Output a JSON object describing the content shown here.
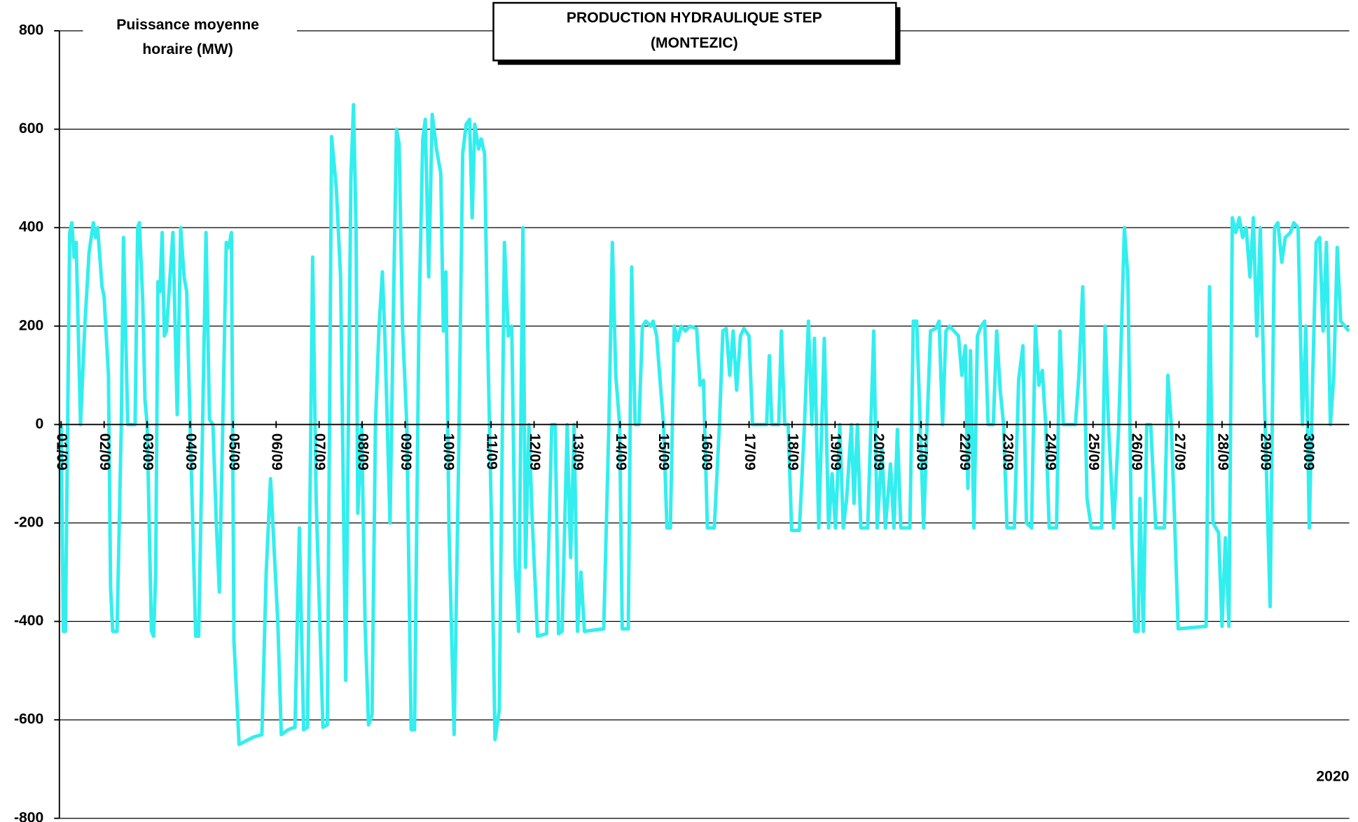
{
  "chart_data": {
    "type": "line",
    "title": [
      "PRODUCTION HYDRAULIQUE STEP",
      "(MONTEZIC)"
    ],
    "y_label": [
      "Puissance moyenne",
      "horaire (MW)"
    ],
    "annotation": "2020",
    "color": "#33eeee",
    "grid": true,
    "xlim": [
      1,
      31
    ],
    "ylim": [
      -800,
      800
    ],
    "yticks": [
      -800,
      -600,
      -400,
      -200,
      0,
      200,
      400,
      600,
      800
    ],
    "xticks": [
      {
        "value": 1,
        "label": "01/09"
      },
      {
        "value": 2,
        "label": "02/09"
      },
      {
        "value": 3,
        "label": "03/09"
      },
      {
        "value": 4,
        "label": "04/09"
      },
      {
        "value": 5,
        "label": "05/09"
      },
      {
        "value": 6,
        "label": "06/09"
      },
      {
        "value": 7,
        "label": "07/09"
      },
      {
        "value": 8,
        "label": "08/09"
      },
      {
        "value": 9,
        "label": "09/09"
      },
      {
        "value": 10,
        "label": "10/09"
      },
      {
        "value": 11,
        "label": "11/09"
      },
      {
        "value": 12,
        "label": "12/09"
      },
      {
        "value": 13,
        "label": "13/09"
      },
      {
        "value": 14,
        "label": "14/09"
      },
      {
        "value": 15,
        "label": "15/09"
      },
      {
        "value": 16,
        "label": "16/09"
      },
      {
        "value": 17,
        "label": "17/09"
      },
      {
        "value": 18,
        "label": "18/09"
      },
      {
        "value": 19,
        "label": "19/09"
      },
      {
        "value": 20,
        "label": "20/09"
      },
      {
        "value": 21,
        "label": "21/09"
      },
      {
        "value": 22,
        "label": "22/09"
      },
      {
        "value": 23,
        "label": "23/09"
      },
      {
        "value": 24,
        "label": "24/09"
      },
      {
        "value": 25,
        "label": "25/09"
      },
      {
        "value": 26,
        "label": "26/09"
      },
      {
        "value": 27,
        "label": "27/09"
      },
      {
        "value": 28,
        "label": "28/09"
      },
      {
        "value": 29,
        "label": "29/09"
      },
      {
        "value": 30,
        "label": "30/09"
      }
    ],
    "x": [
      1.0,
      1.05,
      1.1,
      1.2,
      1.25,
      1.3,
      1.35,
      1.45,
      1.55,
      1.65,
      1.75,
      1.8,
      1.85,
      1.95,
      2.0,
      2.1,
      2.15,
      2.2,
      2.3,
      2.4,
      2.45,
      2.55,
      2.65,
      2.72,
      2.78,
      2.82,
      2.9,
      2.95,
      3.0,
      3.1,
      3.15,
      3.2,
      3.25,
      3.3,
      3.35,
      3.4,
      3.45,
      3.6,
      3.7,
      3.78,
      3.86,
      3.92,
      4.0,
      4.13,
      4.2,
      4.29,
      4.37,
      4.45,
      4.53,
      4.61,
      4.68,
      4.76,
      4.84,
      4.9,
      4.96,
      5.02,
      5.14,
      5.36,
      5.47,
      5.67,
      5.77,
      5.87,
      6.04,
      6.12,
      6.28,
      6.44,
      6.54,
      6.64,
      6.73,
      6.85,
      6.93,
      7.09,
      7.19,
      7.29,
      7.4,
      7.5,
      7.62,
      7.74,
      7.8,
      7.86,
      7.9,
      7.99,
      8.07,
      8.15,
      8.23,
      8.31,
      8.39,
      8.47,
      8.53,
      8.65,
      8.74,
      8.8,
      8.86,
      8.94,
      9.04,
      9.14,
      9.22,
      9.32,
      9.41,
      9.47,
      9.55,
      9.63,
      9.73,
      9.83,
      9.89,
      9.95,
      10.02,
      10.14,
      10.24,
      10.34,
      10.42,
      10.5,
      10.56,
      10.62,
      10.71,
      10.77,
      10.85,
      10.91,
      11.01,
      11.09,
      11.19,
      11.31,
      11.4,
      11.48,
      11.56,
      11.64,
      11.74,
      11.8,
      11.88,
      11.96,
      12.08,
      12.29,
      12.41,
      12.49,
      12.57,
      12.65,
      12.77,
      12.85,
      12.93,
      13.01,
      13.09,
      13.17,
      13.62,
      13.74,
      13.82,
      13.9,
      13.99,
      14.05,
      14.19,
      14.27,
      14.35,
      14.44,
      14.52,
      14.6,
      14.71,
      14.77,
      14.85,
      14.93,
      15.01,
      15.09,
      15.17,
      15.26,
      15.34,
      15.42,
      15.52,
      15.62,
      15.78,
      15.86,
      15.94,
      16.03,
      16.19,
      16.31,
      16.39,
      16.47,
      16.55,
      16.63,
      16.71,
      16.8,
      16.88,
      17.0,
      17.08,
      17.41,
      17.47,
      17.53,
      17.69,
      17.75,
      17.83,
      17.91,
      17.99,
      18.17,
      18.29,
      18.38,
      18.46,
      18.52,
      18.62,
      18.75,
      18.85,
      18.93,
      19.01,
      19.11,
      19.19,
      19.27,
      19.38,
      19.44,
      19.52,
      19.6,
      19.76,
      19.9,
      19.98,
      20.09,
      20.17,
      20.29,
      20.37,
      20.45,
      20.53,
      20.74,
      20.82,
      20.9,
      20.98,
      21.06,
      21.14,
      21.22,
      21.34,
      21.42,
      21.5,
      21.58,
      21.66,
      21.87,
      21.95,
      22.03,
      22.09,
      22.15,
      22.23,
      22.31,
      22.4,
      22.48,
      22.56,
      22.68,
      22.76,
      22.84,
      22.92,
      23.0,
      23.17,
      23.27,
      23.37,
      23.45,
      23.57,
      23.66,
      23.74,
      23.82,
      23.9,
      23.98,
      24.15,
      24.23,
      24.31,
      24.59,
      24.67,
      24.76,
      24.86,
      24.96,
      25.2,
      25.28,
      25.36,
      25.48,
      25.6,
      25.73,
      25.81,
      25.89,
      25.97,
      26.05,
      26.09,
      26.17,
      26.25,
      26.34,
      26.46,
      26.66,
      26.74,
      26.82,
      26.9,
      26.98,
      27.63,
      27.71,
      27.79,
      27.92,
      28.0,
      28.08,
      28.16,
      28.24,
      28.32,
      28.4,
      28.48,
      28.56,
      28.65,
      28.73,
      28.81,
      28.89,
      28.97,
      29.12,
      29.22,
      29.3,
      29.39,
      29.47,
      29.59,
      29.67,
      29.77,
      29.87,
      29.95,
      30.03,
      30.11,
      30.19,
      30.27,
      30.35,
      30.43,
      30.52,
      30.6,
      30.68,
      30.76,
      30.95
    ],
    "values": [
      0,
      -420,
      -420,
      390,
      410,
      340,
      370,
      0,
      200,
      350,
      410,
      380,
      400,
      280,
      260,
      100,
      -330,
      -420,
      -420,
      0,
      380,
      0,
      0,
      0,
      400,
      410,
      250,
      50,
      0,
      -420,
      -430,
      -300,
      290,
      270,
      390,
      180,
      190,
      390,
      20,
      400,
      300,
      270,
      0,
      -430,
      -430,
      0,
      390,
      10,
      0,
      -200,
      -340,
      0,
      370,
      360,
      390,
      -440,
      -650,
      -640,
      -635,
      -630,
      -300,
      -110,
      -400,
      -630,
      -620,
      -615,
      -210,
      -620,
      -615,
      340,
      -150,
      -615,
      -610,
      585,
      480,
      300,
      -520,
      500,
      650,
      400,
      -180,
      0,
      -410,
      -610,
      -590,
      0,
      190,
      310,
      180,
      -200,
      300,
      600,
      570,
      200,
      0,
      -620,
      -620,
      200,
      580,
      620,
      300,
      630,
      560,
      510,
      190,
      310,
      -210,
      -630,
      -100,
      550,
      610,
      620,
      420,
      610,
      560,
      580,
      550,
      220,
      -200,
      -640,
      -580,
      370,
      180,
      200,
      -280,
      -420,
      400,
      -290,
      0,
      -200,
      -430,
      -425,
      0,
      0,
      -425,
      -420,
      0,
      -270,
      0,
      -420,
      -300,
      -420,
      -415,
      0,
      370,
      100,
      0,
      -415,
      -415,
      320,
      0,
      0,
      200,
      210,
      200,
      210,
      180,
      90,
      0,
      -210,
      -210,
      200,
      170,
      200,
      190,
      200,
      195,
      80,
      90,
      -210,
      -210,
      0,
      190,
      195,
      100,
      190,
      70,
      180,
      195,
      180,
      0,
      0,
      140,
      0,
      0,
      190,
      0,
      0,
      -215,
      -215,
      0,
      210,
      0,
      175,
      -210,
      175,
      -210,
      -100,
      -210,
      0,
      -210,
      -150,
      0,
      -160,
      0,
      -210,
      -210,
      190,
      -210,
      -50,
      -210,
      -80,
      -210,
      -10,
      -210,
      -210,
      210,
      210,
      0,
      -210,
      0,
      190,
      195,
      210,
      0,
      190,
      200,
      180,
      100,
      160,
      -130,
      150,
      -210,
      180,
      200,
      210,
      0,
      0,
      190,
      70,
      0,
      -210,
      -210,
      90,
      160,
      -200,
      -210,
      200,
      80,
      110,
      0,
      -210,
      -210,
      190,
      0,
      0,
      100,
      280,
      -150,
      -210,
      -210,
      200,
      0,
      -210,
      0,
      400,
      300,
      -200,
      -420,
      -420,
      -150,
      -420,
      0,
      0,
      -210,
      -210,
      100,
      0,
      -200,
      -415,
      -410,
      280,
      -200,
      -220,
      -410,
      -230,
      -410,
      420,
      390,
      420,
      380,
      400,
      300,
      420,
      180,
      400,
      100,
      -370,
      400,
      410,
      330,
      380,
      390,
      410,
      400,
      0,
      200,
      -210,
      100,
      370,
      380,
      190,
      370,
      0,
      100,
      360,
      210,
      190
    ]
  }
}
